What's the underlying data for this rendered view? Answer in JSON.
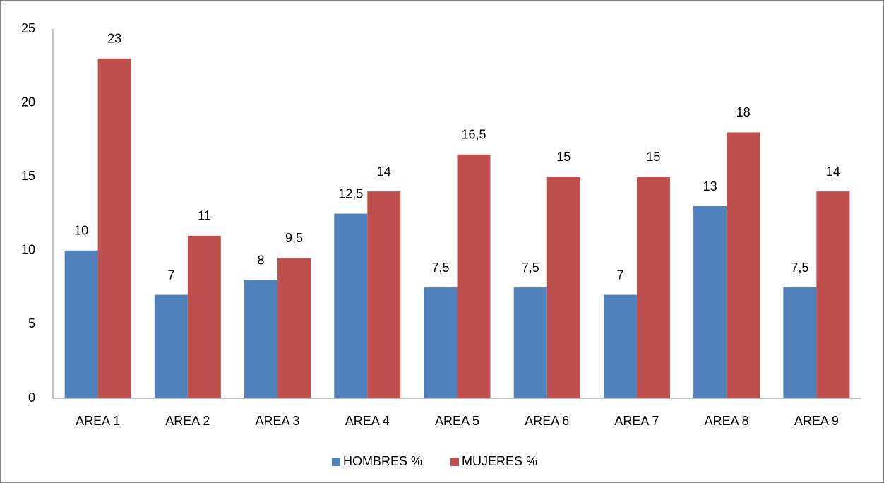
{
  "chart_data": {
    "type": "bar",
    "categories": [
      "AREA 1",
      "AREA 2",
      "AREA 3",
      "AREA 4",
      "AREA 5",
      "AREA 6",
      "AREA 7",
      "AREA 8",
      "AREA 9"
    ],
    "series": [
      {
        "name": "HOMBRES %",
        "color": "#4f81bd",
        "values": [
          10,
          7,
          8,
          12.5,
          7.5,
          7.5,
          7,
          13,
          7.5
        ],
        "value_labels": [
          "10",
          "7",
          "8",
          "12,5",
          "7,5",
          "7,5",
          "7",
          "13",
          "7,5"
        ]
      },
      {
        "name": "MUJERES %",
        "color": "#c0504d",
        "values": [
          23,
          11,
          9.5,
          14,
          16.5,
          15,
          15,
          18,
          14
        ],
        "value_labels": [
          "23",
          "11",
          "9,5",
          "14",
          "16,5",
          "15",
          "15",
          "18",
          "14"
        ]
      }
    ],
    "ylim": [
      0,
      25
    ],
    "yticks": [
      0,
      5,
      10,
      15,
      20,
      25
    ],
    "grid": false,
    "legend": "bottom"
  }
}
